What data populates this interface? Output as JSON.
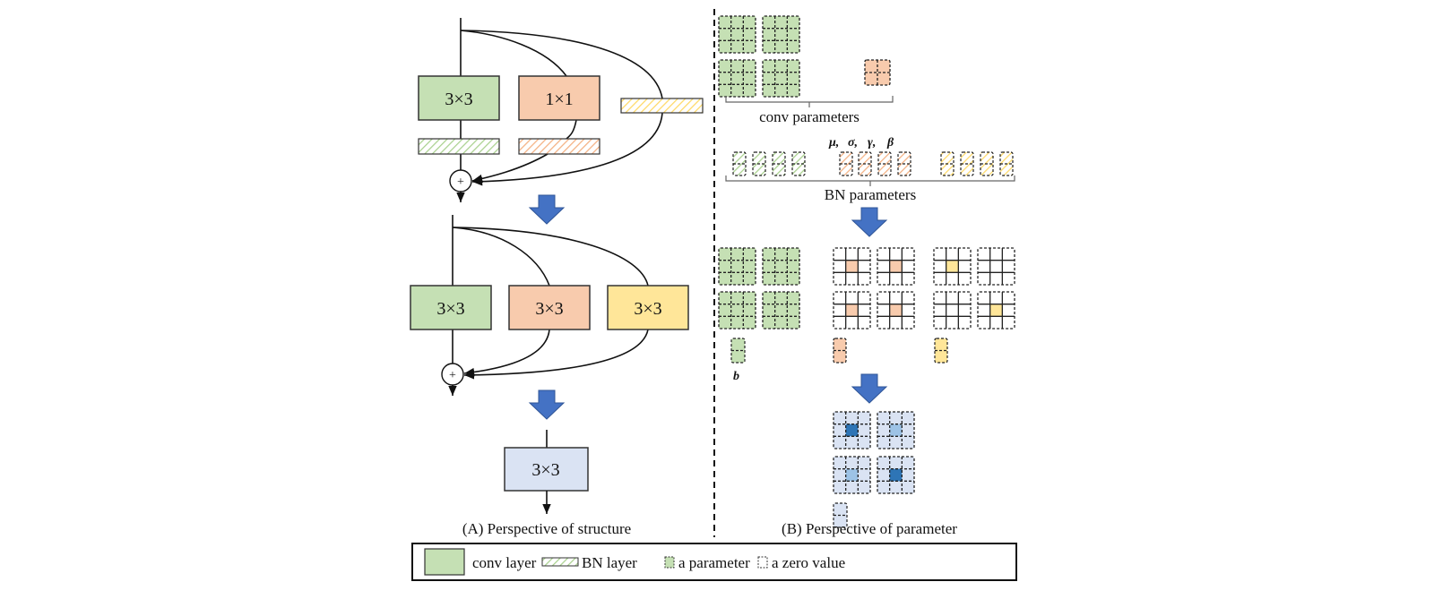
{
  "colors": {
    "conv_green": "#c5e0b4",
    "conv_orange": "#f8cbad",
    "conv_yellow": "#ffe699",
    "fused_blue": "#dae3f3",
    "fused_blue_mid": "#9dc3e6",
    "fused_blue_dark": "#2e75b6",
    "arrow_blue": "#4472c4"
  },
  "structure": {
    "training_block": {
      "conv3x3": "3×3",
      "conv1x1": "1×1"
    },
    "reparam_block": {
      "branch_green": "3×3",
      "branch_orange": "3×3",
      "branch_yellow": "3×3"
    },
    "final_block": {
      "conv": "3×3"
    },
    "add_symbol": "+",
    "caption": "(A) Perspective of structure"
  },
  "parameters": {
    "conv_label": "conv parameters",
    "bn_symbols": [
      "μ,",
      "σ,",
      "γ,",
      "β"
    ],
    "bn_label": "BN parameters",
    "bias_label": "b",
    "caption": "(B) Perspective of parameter"
  },
  "legend": {
    "conv_layer": "conv layer",
    "bn_layer": "BN layer",
    "a_parameter": "a parameter",
    "a_zero_value": "a zero value"
  }
}
